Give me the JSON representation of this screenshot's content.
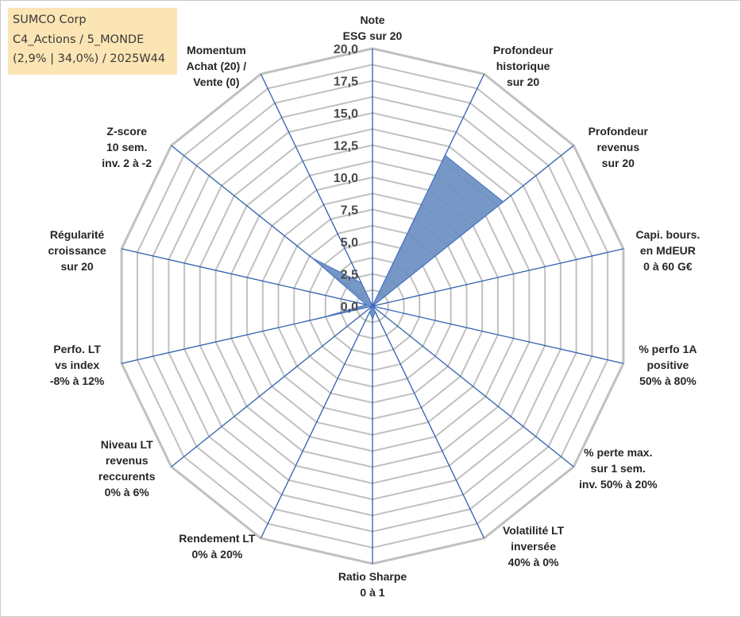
{
  "header": {
    "line1": "SUMCO Corp",
    "line2": "C4_Actions / 5_MONDE",
    "line3": "(2,9% | 34,0%) / 2025W44"
  },
  "colors": {
    "grid": "#c0c0c0",
    "spoke": "#2f5fad",
    "fill": "#6b8fc2",
    "stroke": "#4472c4",
    "header_bg": "#fbe5b4"
  },
  "chart_data": {
    "type": "radar",
    "rmin": 0,
    "rmax": 20,
    "ticks": [
      "0,0",
      "2,5",
      "5,0",
      "7,5",
      "10,0",
      "12,5",
      "15,0",
      "17,5",
      "20,0"
    ],
    "grid": true,
    "legend": "none",
    "axes": [
      {
        "label": [
          "Note",
          "ESG sur 20"
        ]
      },
      {
        "label": [
          "Profondeur",
          "historique",
          "sur 20"
        ]
      },
      {
        "label": [
          "Profondeur",
          "revenus",
          "sur 20"
        ]
      },
      {
        "label": [
          "Capi. bours.",
          "en MdEUR",
          "0 à 60 G€"
        ]
      },
      {
        "label": [
          "% perfo 1A",
          "positive",
          "50% à 80%"
        ]
      },
      {
        "label": [
          "% perte max.",
          "sur 1 sem.",
          "inv. 50% à 20%"
        ]
      },
      {
        "label": [
          "Volatilité LT",
          "inversée",
          "40% à 0%"
        ]
      },
      {
        "label": [
          "Ratio Sharpe",
          "0 à 1"
        ]
      },
      {
        "label": [
          "Rendement LT",
          "0% à 20%"
        ]
      },
      {
        "label": [
          "Niveau LT",
          "revenus",
          "reccurents",
          "0% à 6%"
        ]
      },
      {
        "label": [
          "Perfo. LT",
          "vs index",
          "-8% à 12%"
        ]
      },
      {
        "label": [
          "Régularité",
          "croissance",
          "sur 20"
        ]
      },
      {
        "label": [
          "Z-score",
          "10 sem.",
          "inv. 2 à -2"
        ]
      },
      {
        "label": [
          "Momentum",
          "Achat (20) /",
          "Vente (0)"
        ]
      }
    ],
    "series": [
      {
        "values": [
          0,
          13,
          13,
          0,
          5,
          0,
          0.5,
          1,
          0.5,
          0,
          4,
          0.5,
          6,
          2
        ]
      }
    ]
  }
}
